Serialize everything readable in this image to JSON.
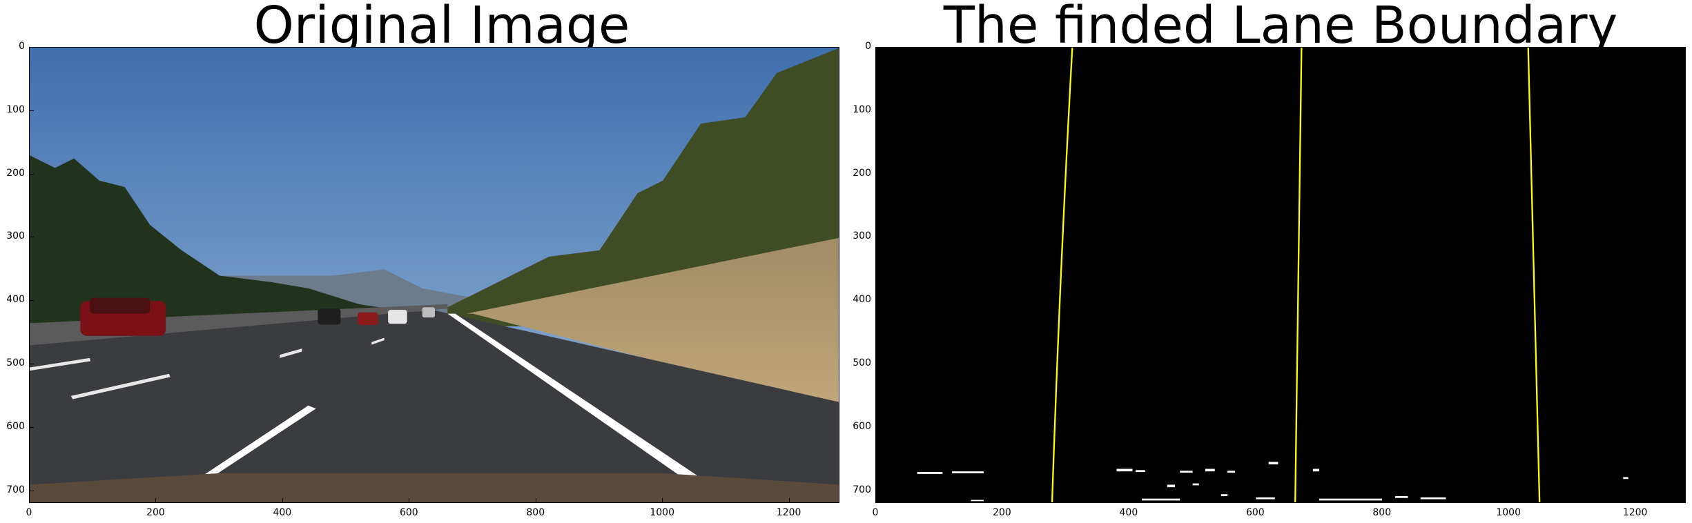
{
  "panels": [
    {
      "title": "Original Image",
      "x_ticks": [
        "0",
        "200",
        "400",
        "600",
        "800",
        "1000",
        "1200"
      ],
      "y_ticks": [
        "0",
        "100",
        "200",
        "300",
        "400",
        "500",
        "600",
        "700"
      ]
    },
    {
      "title": "The finded Lane Boundary",
      "x_ticks": [
        "0",
        "200",
        "400",
        "600",
        "800",
        "1000",
        "1200"
      ],
      "y_ticks": [
        "0",
        "100",
        "200",
        "300",
        "400",
        "500",
        "600",
        "700"
      ]
    }
  ],
  "image_extent": {
    "width": 1280,
    "height": 720
  },
  "colors": {
    "sky": "#5b8bc4",
    "road": "#3c3c40",
    "lane_line": "#ffff00",
    "binary_bg": "#000000"
  }
}
